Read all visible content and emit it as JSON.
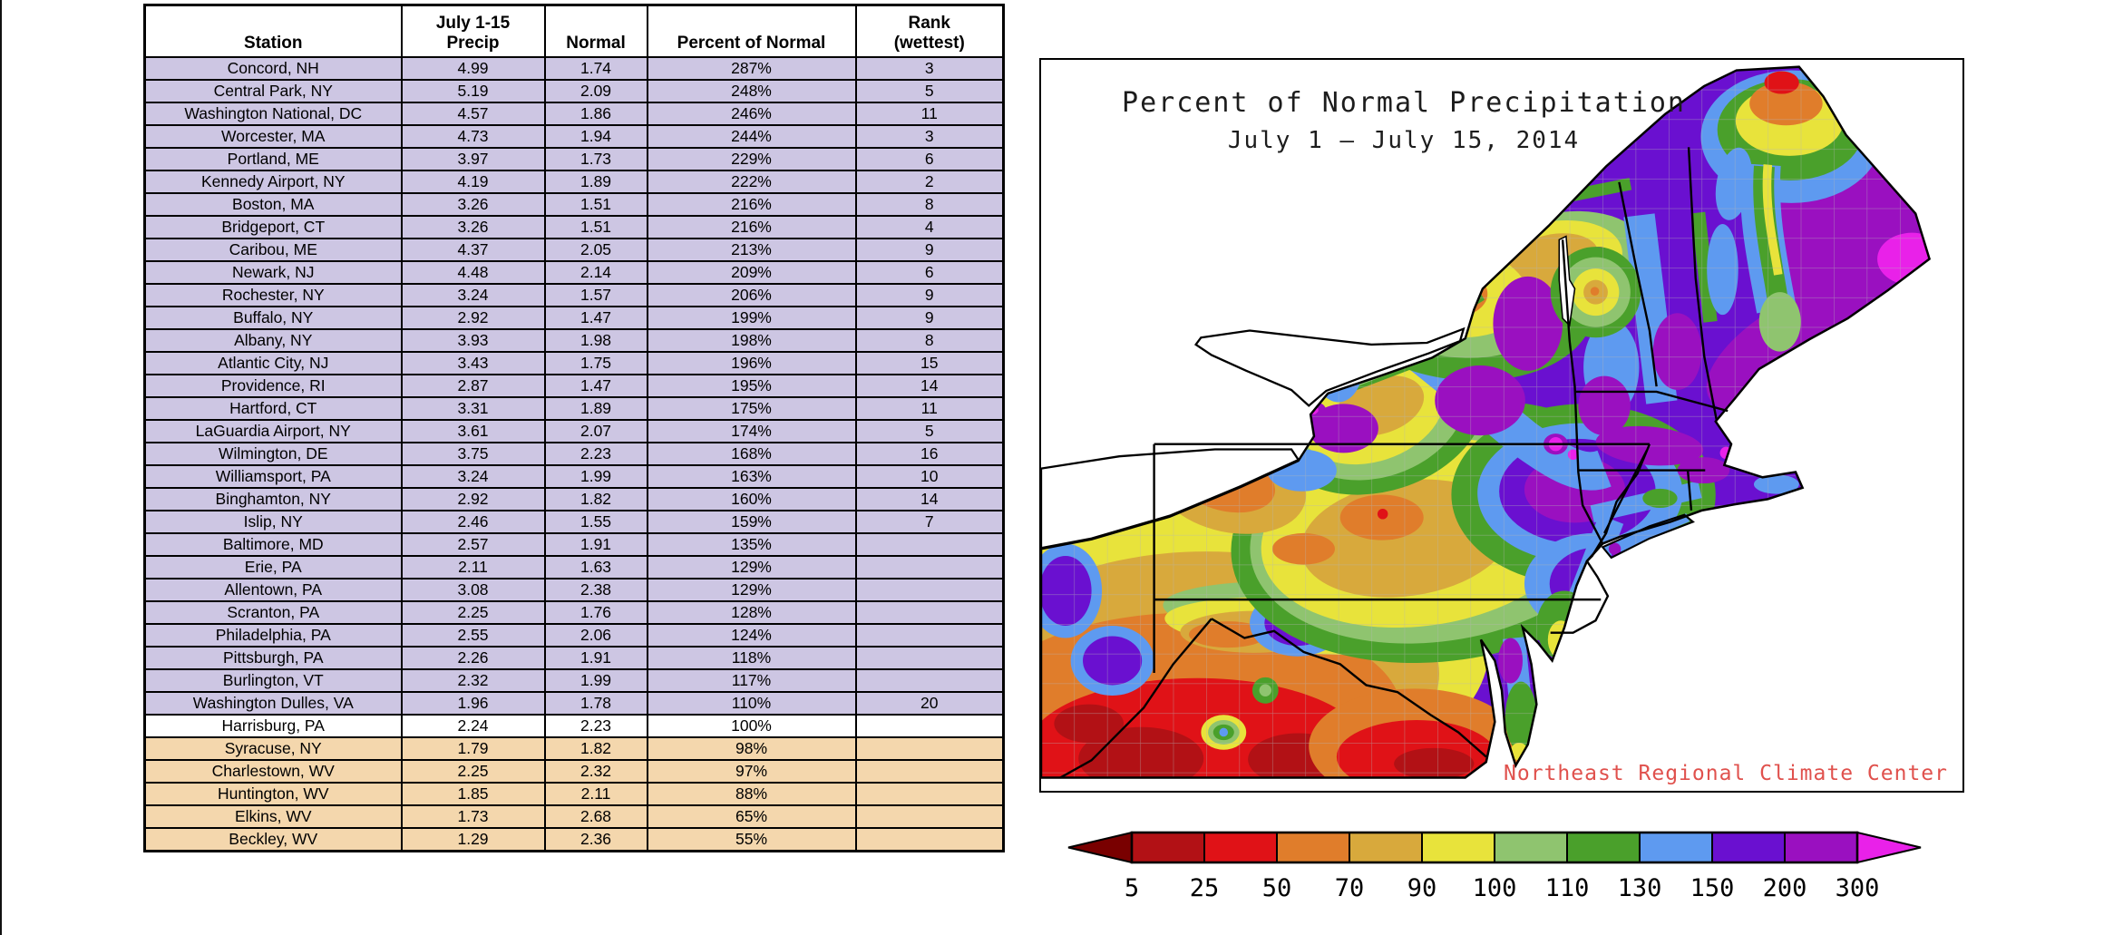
{
  "table": {
    "headers": {
      "station": "Station",
      "precip_line1": "July 1-15",
      "precip_line2": "Precip",
      "normal": "Normal",
      "percent": "Percent of Normal",
      "rank_line1": "Rank",
      "rank_line2": "(wettest)"
    },
    "colors": {
      "purple": "#cdc6e3",
      "white": "#ffffff",
      "tan": "#f4d7ad"
    },
    "rows": [
      {
        "station": "Concord, NH",
        "precip": "4.99",
        "normal": "1.74",
        "percent": "287%",
        "rank": "3",
        "shade": "purple"
      },
      {
        "station": "Central Park, NY",
        "precip": "5.19",
        "normal": "2.09",
        "percent": "248%",
        "rank": "5",
        "shade": "purple"
      },
      {
        "station": "Washington National, DC",
        "precip": "4.57",
        "normal": "1.86",
        "percent": "246%",
        "rank": "11",
        "shade": "purple"
      },
      {
        "station": "Worcester, MA",
        "precip": "4.73",
        "normal": "1.94",
        "percent": "244%",
        "rank": "3",
        "shade": "purple"
      },
      {
        "station": "Portland, ME",
        "precip": "3.97",
        "normal": "1.73",
        "percent": "229%",
        "rank": "6",
        "shade": "purple"
      },
      {
        "station": "Kennedy Airport, NY",
        "precip": "4.19",
        "normal": "1.89",
        "percent": "222%",
        "rank": "2",
        "shade": "purple"
      },
      {
        "station": "Boston, MA",
        "precip": "3.26",
        "normal": "1.51",
        "percent": "216%",
        "rank": "8",
        "shade": "purple"
      },
      {
        "station": "Bridgeport, CT",
        "precip": "3.26",
        "normal": "1.51",
        "percent": "216%",
        "rank": "4",
        "shade": "purple"
      },
      {
        "station": "Caribou, ME",
        "precip": "4.37",
        "normal": "2.05",
        "percent": "213%",
        "rank": "9",
        "shade": "purple"
      },
      {
        "station": "Newark, NJ",
        "precip": "4.48",
        "normal": "2.14",
        "percent": "209%",
        "rank": "6",
        "shade": "purple"
      },
      {
        "station": "Rochester, NY",
        "precip": "3.24",
        "normal": "1.57",
        "percent": "206%",
        "rank": "9",
        "shade": "purple"
      },
      {
        "station": "Buffalo, NY",
        "precip": "2.92",
        "normal": "1.47",
        "percent": "199%",
        "rank": "9",
        "shade": "purple"
      },
      {
        "station": "Albany, NY",
        "precip": "3.93",
        "normal": "1.98",
        "percent": "198%",
        "rank": "8",
        "shade": "purple"
      },
      {
        "station": "Atlantic City, NJ",
        "precip": "3.43",
        "normal": "1.75",
        "percent": "196%",
        "rank": "15",
        "shade": "purple"
      },
      {
        "station": "Providence, RI",
        "precip": "2.87",
        "normal": "1.47",
        "percent": "195%",
        "rank": "14",
        "shade": "purple"
      },
      {
        "station": "Hartford, CT",
        "precip": "3.31",
        "normal": "1.89",
        "percent": "175%",
        "rank": "11",
        "shade": "purple"
      },
      {
        "station": "LaGuardia Airport, NY",
        "precip": "3.61",
        "normal": "2.07",
        "percent": "174%",
        "rank": "5",
        "shade": "purple"
      },
      {
        "station": "Wilmington, DE",
        "precip": "3.75",
        "normal": "2.23",
        "percent": "168%",
        "rank": "16",
        "shade": "purple"
      },
      {
        "station": "Williamsport, PA",
        "precip": "3.24",
        "normal": "1.99",
        "percent": "163%",
        "rank": "10",
        "shade": "purple"
      },
      {
        "station": "Binghamton, NY",
        "precip": "2.92",
        "normal": "1.82",
        "percent": "160%",
        "rank": "14",
        "shade": "purple"
      },
      {
        "station": "Islip, NY",
        "precip": "2.46",
        "normal": "1.55",
        "percent": "159%",
        "rank": "7",
        "shade": "purple"
      },
      {
        "station": "Baltimore, MD",
        "precip": "2.57",
        "normal": "1.91",
        "percent": "135%",
        "rank": "",
        "shade": "purple"
      },
      {
        "station": "Erie, PA",
        "precip": "2.11",
        "normal": "1.63",
        "percent": "129%",
        "rank": "",
        "shade": "purple"
      },
      {
        "station": "Allentown, PA",
        "precip": "3.08",
        "normal": "2.38",
        "percent": "129%",
        "rank": "",
        "shade": "purple"
      },
      {
        "station": "Scranton, PA",
        "precip": "2.25",
        "normal": "1.76",
        "percent": "128%",
        "rank": "",
        "shade": "purple"
      },
      {
        "station": "Philadelphia, PA",
        "precip": "2.55",
        "normal": "2.06",
        "percent": "124%",
        "rank": "",
        "shade": "purple"
      },
      {
        "station": "Pittsburgh, PA",
        "precip": "2.26",
        "normal": "1.91",
        "percent": "118%",
        "rank": "",
        "shade": "purple"
      },
      {
        "station": "Burlington, VT",
        "precip": "2.32",
        "normal": "1.99",
        "percent": "117%",
        "rank": "",
        "shade": "purple"
      },
      {
        "station": "Washington Dulles, VA",
        "precip": "1.96",
        "normal": "1.78",
        "percent": "110%",
        "rank": "20",
        "shade": "purple"
      },
      {
        "station": "Harrisburg, PA",
        "precip": "2.24",
        "normal": "2.23",
        "percent": "100%",
        "rank": "",
        "shade": "white"
      },
      {
        "station": "Syracuse, NY",
        "precip": "1.79",
        "normal": "1.82",
        "percent": "98%",
        "rank": "",
        "shade": "tan"
      },
      {
        "station": "Charlestown, WV",
        "precip": "2.25",
        "normal": "2.32",
        "percent": "97%",
        "rank": "",
        "shade": "tan"
      },
      {
        "station": "Huntington, WV",
        "precip": "1.85",
        "normal": "2.11",
        "percent": "88%",
        "rank": "",
        "shade": "tan"
      },
      {
        "station": "Elkins, WV",
        "precip": "1.73",
        "normal": "2.68",
        "percent": "65%",
        "rank": "",
        "shade": "tan"
      },
      {
        "station": "Beckley, WV",
        "precip": "1.29",
        "normal": "2.36",
        "percent": "55%",
        "rank": "",
        "shade": "tan"
      }
    ]
  },
  "map": {
    "title": "Percent of Normal Precipitation",
    "subtitle": "July 1 – July 15, 2014",
    "credit": "Northeast Regional Climate Center",
    "legend": {
      "labels": [
        "5",
        "25",
        "50",
        "70",
        "90",
        "100",
        "110",
        "130",
        "150",
        "200",
        "300"
      ],
      "colors": [
        "#b21115",
        "#e01217",
        "#e07d2b",
        "#d8a93c",
        "#e8e33b",
        "#8fc46f",
        "#4aa02b",
        "#5e9af0",
        "#6a10d0",
        "#9a10c0"
      ],
      "left_arrow_color": "#790000",
      "right_arrow_color": "#e921e9"
    }
  }
}
